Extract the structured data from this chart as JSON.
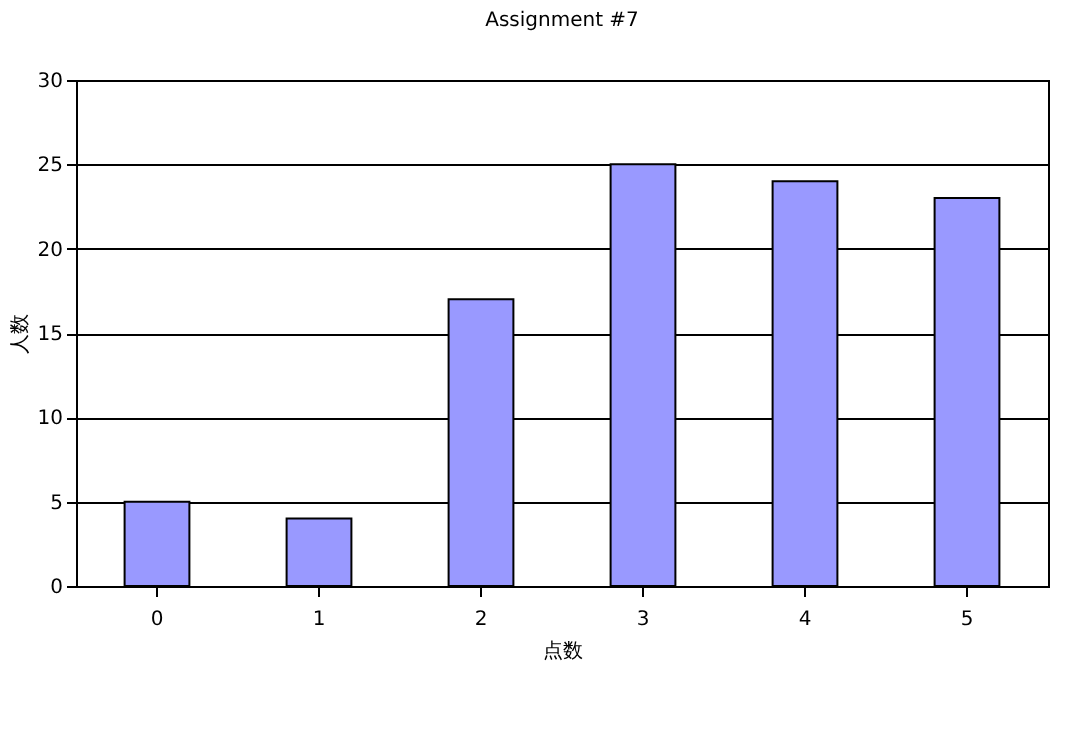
{
  "chart_data": {
    "type": "bar",
    "title": "Assignment #7",
    "xlabel": "点数",
    "ylabel": "人数",
    "categories": [
      "0",
      "1",
      "2",
      "3",
      "4",
      "5"
    ],
    "values": [
      5,
      4,
      17,
      25,
      24,
      23
    ],
    "color": "#9999ff",
    "ylim": [
      0,
      30
    ],
    "yticks": [
      0,
      5,
      10,
      15,
      20,
      25,
      30
    ],
    "grid": "y"
  }
}
